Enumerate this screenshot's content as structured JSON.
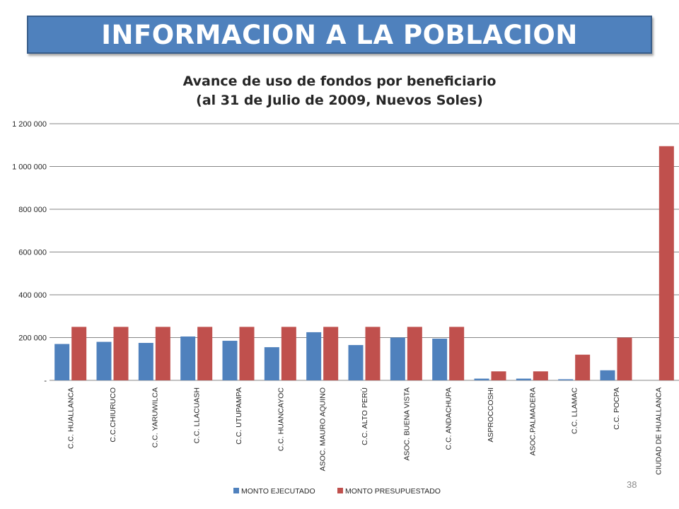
{
  "banner": {
    "title": "INFORMACION A LA POBLACION"
  },
  "page_number": "38",
  "colors": {
    "banner": "#4f81bd",
    "ejecutado": "#4f81bd",
    "presupuestado": "#c0504d",
    "grid": "#868686"
  },
  "chart_data": {
    "type": "bar",
    "title": "Avance de uso de fondos por beneficiario",
    "subtitle": "(al 31 de Julio de 2009, Nuevos Soles)",
    "categories": [
      "C.C. HUALLANCA",
      "C.C.CHIURUCO",
      "C.C.  YARUWILCA",
      "C.C.  LLACUASH",
      "C.C. UTUPAMPA",
      "C.C. HUANCAYOC",
      "ASOC. MAURO AQUINO",
      "C.C. ALTO PERÚ",
      "ASOC. BUENA VISTA",
      "C.C.  ANDACHUPA",
      "ASPROCCOSHI",
      "ASOC.PALMADERA",
      "C.C. LLAMAC",
      "C.C.  POCPA",
      "CIUDAD DE HUALLANCA"
    ],
    "series": [
      {
        "name": "MONTO EJECUTADO",
        "values": [
          170000,
          180000,
          175000,
          205000,
          185000,
          155000,
          225000,
          165000,
          200000,
          195000,
          8000,
          8000,
          5000,
          47000,
          0
        ]
      },
      {
        "name": "MONTO PRESUPUESTADO",
        "values": [
          250000,
          250000,
          250000,
          250000,
          250000,
          250000,
          250000,
          250000,
          250000,
          250000,
          42000,
          42000,
          120000,
          200000,
          1095000
        ]
      }
    ],
    "ylim": [
      0,
      1200000
    ],
    "y_ticks": [
      0,
      200000,
      400000,
      600000,
      800000,
      1000000,
      1200000
    ],
    "y_tick_labels": [
      "-",
      "200 000",
      "400 000",
      "600 000",
      "800 000",
      "1 000 000",
      "1 200 000"
    ],
    "grid": true,
    "legend_position": "bottom"
  }
}
